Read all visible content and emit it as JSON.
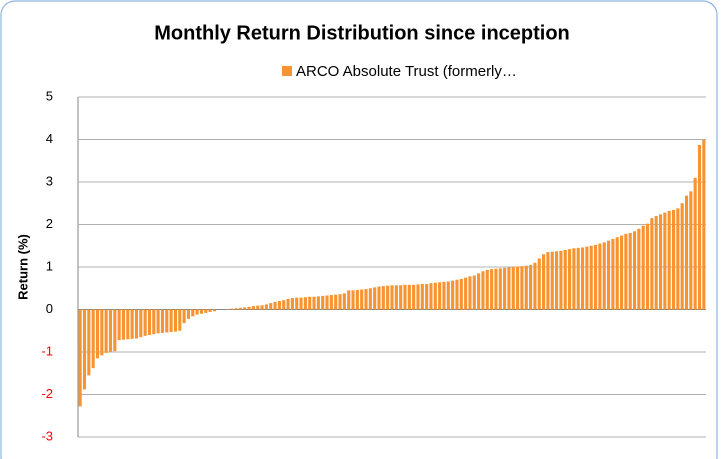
{
  "chart_data": {
    "type": "bar",
    "title": "Monthly Return Distribution since inception",
    "y_label": "Return (%)",
    "categories": [
      null,
      null,
      null,
      null,
      null,
      null,
      null,
      null,
      null,
      null,
      null,
      null,
      null,
      null,
      null,
      null,
      null,
      null,
      null,
      null,
      null,
      null,
      null,
      null,
      null,
      null,
      null,
      null,
      null,
      null,
      null,
      null,
      null,
      null,
      null,
      null,
      null,
      null,
      null,
      null,
      null,
      null,
      null,
      null,
      null,
      null,
      null,
      null,
      null,
      null,
      null,
      null,
      null,
      null,
      null,
      null,
      null,
      null,
      null,
      null,
      null,
      null,
      null,
      null,
      null,
      null,
      null,
      null,
      null,
      null,
      null,
      null,
      null,
      null,
      null,
      null,
      null,
      null,
      null,
      null,
      null,
      null,
      null,
      null,
      null,
      null,
      null,
      null,
      null,
      null,
      null,
      null,
      null,
      null,
      null,
      null,
      null,
      null,
      null,
      null,
      null,
      null,
      null,
      null,
      null,
      null,
      null,
      null,
      null,
      null,
      null,
      null,
      null,
      null,
      null,
      null,
      null,
      null,
      null,
      null,
      null,
      null,
      null,
      null,
      null,
      null,
      null,
      null,
      null,
      null,
      null,
      null,
      null,
      null,
      null,
      null,
      null,
      null,
      null,
      null,
      null,
      null,
      null,
      null,
      null
    ],
    "series": [
      {
        "name": "ARCO Absolute Trust (formerly…",
        "color": "#f79331",
        "values": [
          -2.28,
          -1.88,
          -1.55,
          -1.38,
          -1.15,
          -1.08,
          -1.02,
          -1.0,
          -0.98,
          -0.72,
          -0.71,
          -0.7,
          -0.69,
          -0.68,
          -0.65,
          -0.62,
          -0.6,
          -0.58,
          -0.56,
          -0.55,
          -0.54,
          -0.53,
          -0.52,
          -0.5,
          -0.32,
          -0.22,
          -0.16,
          -0.12,
          -0.1,
          -0.08,
          -0.06,
          -0.04,
          0,
          0,
          0.01,
          0.02,
          0.03,
          0.04,
          0.05,
          0.06,
          0.08,
          0.09,
          0.1,
          0.12,
          0.15,
          0.18,
          0.2,
          0.22,
          0.25,
          0.27,
          0.28,
          0.28,
          0.29,
          0.3,
          0.3,
          0.31,
          0.32,
          0.33,
          0.34,
          0.35,
          0.36,
          0.38,
          0.45,
          0.45,
          0.46,
          0.47,
          0.48,
          0.5,
          0.52,
          0.54,
          0.55,
          0.56,
          0.57,
          0.57,
          0.57,
          0.58,
          0.58,
          0.58,
          0.59,
          0.6,
          0.6,
          0.62,
          0.63,
          0.64,
          0.65,
          0.66,
          0.68,
          0.7,
          0.72,
          0.75,
          0.78,
          0.8,
          0.85,
          0.9,
          0.93,
          0.95,
          0.96,
          0.97,
          0.98,
          0.99,
          1.0,
          1.01,
          1.02,
          1.03,
          1.05,
          1.1,
          1.2,
          1.3,
          1.35,
          1.36,
          1.37,
          1.38,
          1.4,
          1.42,
          1.44,
          1.45,
          1.46,
          1.48,
          1.5,
          1.52,
          1.55,
          1.58,
          1.62,
          1.66,
          1.7,
          1.74,
          1.78,
          1.8,
          1.84,
          1.9,
          1.97,
          2.02,
          2.15,
          2.2,
          2.24,
          2.28,
          2.32,
          2.34,
          2.38,
          2.5,
          2.68,
          2.78,
          3.1,
          3.87,
          4.0
        ]
      }
    ],
    "ylim": [
      -3,
      5
    ],
    "yticks": [
      -3,
      -2,
      -1,
      0,
      1,
      2,
      3,
      4,
      5
    ],
    "grid": true,
    "legend": "top",
    "negative_tick_color": "#ff0000"
  }
}
